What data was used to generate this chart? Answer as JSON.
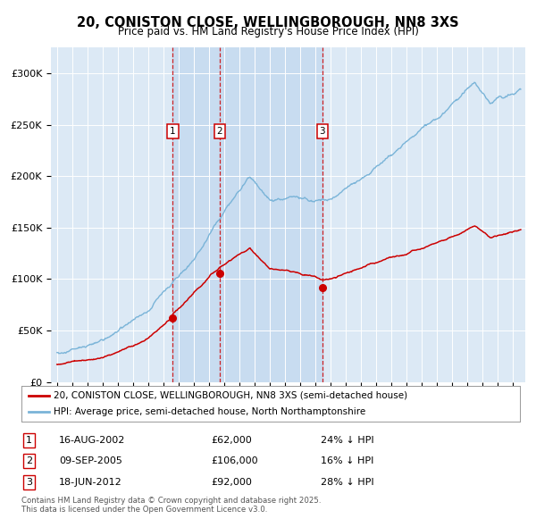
{
  "title": "20, CONISTON CLOSE, WELLINGBOROUGH, NN8 3XS",
  "subtitle": "Price paid vs. HM Land Registry's House Price Index (HPI)",
  "bg_color": "#dce9f5",
  "shade_color": "#c8dcf0",
  "grid_color": "#ffffff",
  "hpi_color": "#7ab4d8",
  "price_color": "#cc0000",
  "sale1_date": 2002.62,
  "sale2_date": 2005.69,
  "sale3_date": 2012.46,
  "sale1_price": 62000,
  "sale2_price": 106000,
  "sale3_price": 92000,
  "legend_house": "20, CONISTON CLOSE, WELLINGBOROUGH, NN8 3XS (semi-detached house)",
  "legend_hpi": "HPI: Average price, semi-detached house, North Northamptonshire",
  "table": [
    {
      "num": "1",
      "date": "16-AUG-2002",
      "price": "£62,000",
      "hpi": "24% ↓ HPI"
    },
    {
      "num": "2",
      "date": "09-SEP-2005",
      "price": "£106,000",
      "hpi": "16% ↓ HPI"
    },
    {
      "num": "3",
      "date": "18-JUN-2012",
      "price": "£92,000",
      "hpi": "28% ↓ HPI"
    }
  ],
  "footer": "Contains HM Land Registry data © Crown copyright and database right 2025.\nThis data is licensed under the Open Government Licence v3.0.",
  "ylim_max": 325000,
  "yticks": [
    0,
    50000,
    100000,
    150000,
    200000,
    250000,
    300000
  ],
  "ytick_labels": [
    "£0",
    "£50K",
    "£100K",
    "£150K",
    "£200K",
    "£250K",
    "£300K"
  ],
  "xlim_start": 1994.6,
  "xlim_end": 2025.8
}
